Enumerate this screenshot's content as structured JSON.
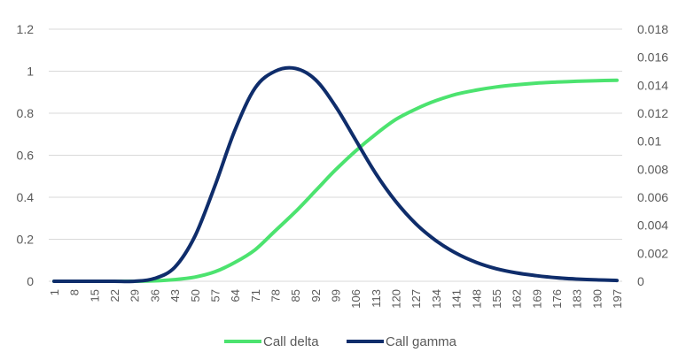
{
  "chart_data": {
    "type": "line",
    "title": "",
    "xlabel": "",
    "ylabel": "",
    "y2label": "",
    "x": [
      1,
      8,
      15,
      22,
      29,
      36,
      43,
      50,
      57,
      64,
      71,
      78,
      85,
      92,
      99,
      106,
      113,
      120,
      127,
      134,
      141,
      148,
      155,
      162,
      169,
      176,
      183,
      190,
      197
    ],
    "x_tick_labels": [
      "1",
      "8",
      "15",
      "22",
      "29",
      "36",
      "43",
      "50",
      "57",
      "64",
      "71",
      "78",
      "85",
      "92",
      "99",
      "106",
      "113",
      "120",
      "127",
      "134",
      "141",
      "148",
      "155",
      "162",
      "169",
      "176",
      "183",
      "190",
      "197"
    ],
    "ylim": [
      0,
      1.2
    ],
    "y_ticks": [
      0,
      0.2,
      0.4,
      0.6,
      0.8,
      1,
      1.2
    ],
    "y_tick_labels": [
      "0",
      "0.2",
      "0.4",
      "0.6",
      "0.8",
      "1",
      "1.2"
    ],
    "y2lim": [
      0,
      0.018
    ],
    "y2_ticks": [
      0,
      0.002,
      0.004,
      0.006,
      0.008,
      0.01,
      0.012,
      0.014,
      0.016,
      0.018
    ],
    "y2_tick_labels": [
      "0",
      "0.002",
      "0.004",
      "0.006",
      "0.008",
      "0.01",
      "0.012",
      "0.014",
      "0.016",
      "0.018"
    ],
    "grid": true,
    "legend_position": "bottom",
    "series": [
      {
        "name": "Call delta",
        "axis": "left",
        "color": "#4ce36f",
        "values": [
          0,
          0,
          0,
          0,
          0,
          0.002,
          0.008,
          0.02,
          0.045,
          0.09,
          0.15,
          0.24,
          0.33,
          0.43,
          0.53,
          0.62,
          0.7,
          0.77,
          0.82,
          0.86,
          0.89,
          0.91,
          0.925,
          0.935,
          0.943,
          0.948,
          0.952,
          0.955,
          0.957
        ]
      },
      {
        "name": "Call gamma",
        "axis": "right",
        "color": "#0f2d6b",
        "values": [
          0,
          0,
          0,
          0,
          0,
          0.0002,
          0.001,
          0.0032,
          0.0068,
          0.0108,
          0.0138,
          0.015,
          0.0152,
          0.0144,
          0.0125,
          0.0101,
          0.0077,
          0.0057,
          0.0041,
          0.0029,
          0.002,
          0.00135,
          0.0009,
          0.0006,
          0.0004,
          0.00025,
          0.00016,
          0.0001,
          6e-05
        ]
      }
    ]
  }
}
